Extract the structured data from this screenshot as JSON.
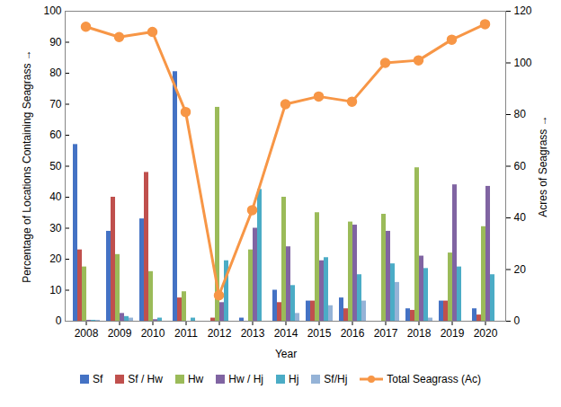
{
  "chart_data": {
    "type": "bar",
    "x_label": "Year",
    "y_label": "Percentage of Locations Containing Seagrass",
    "y2_label": "Acres of Seagrass",
    "categories": [
      "2008",
      "2009",
      "2010",
      "2011",
      "2012",
      "2013",
      "2014",
      "2015",
      "2016",
      "2017",
      "2018",
      "2019",
      "2020"
    ],
    "ylim": [
      0,
      100
    ],
    "yticks": [
      0,
      10,
      20,
      30,
      40,
      50,
      60,
      70,
      80,
      90,
      100
    ],
    "y2lim": [
      0,
      120
    ],
    "y2ticks": [
      0,
      20,
      40,
      60,
      80,
      100,
      120
    ],
    "grid": false,
    "legend": "bottom",
    "series": [
      {
        "name": "Sf",
        "color": "#4472c4",
        "values": [
          57,
          29,
          33,
          80.5,
          0,
          1,
          10,
          6.5,
          7.5,
          0,
          4,
          6.5,
          4
        ]
      },
      {
        "name": "Sf / Hw",
        "color": "#c0504d",
        "values": [
          23,
          40,
          48,
          7.5,
          1,
          0,
          6,
          6.5,
          4,
          0,
          3.5,
          6.5,
          2
        ]
      },
      {
        "name": "Hw",
        "color": "#9bbb59",
        "values": [
          17.5,
          21.5,
          16,
          9.5,
          69,
          23,
          40,
          35,
          32,
          34.5,
          49.5,
          22,
          30.5
        ]
      },
      {
        "name": "Hw / Hj",
        "color": "#8064a2",
        "values": [
          0.3,
          2.5,
          0.5,
          0,
          6,
          30,
          24,
          19.5,
          31,
          29,
          21,
          44,
          43.5
        ]
      },
      {
        "name": "Hj",
        "color": "#4bacc6",
        "values": [
          0.3,
          1.5,
          1,
          1,
          19.5,
          42.5,
          11.5,
          20.5,
          15,
          18.5,
          17,
          17.5,
          15
        ]
      },
      {
        "name": "Sf/Hj",
        "color": "#95b3d7",
        "values": [
          0.3,
          1,
          0,
          0,
          0,
          0,
          2.5,
          5,
          6.5,
          12.5,
          1,
          0,
          0
        ]
      },
      {
        "name": "Total Seagrass (Ac)",
        "color": "#f79646",
        "type": "line",
        "marker": "circle",
        "axis": "y2",
        "values": [
          114,
          110,
          112,
          81,
          10,
          43,
          84,
          87,
          85,
          100,
          101,
          109,
          115
        ]
      }
    ]
  }
}
